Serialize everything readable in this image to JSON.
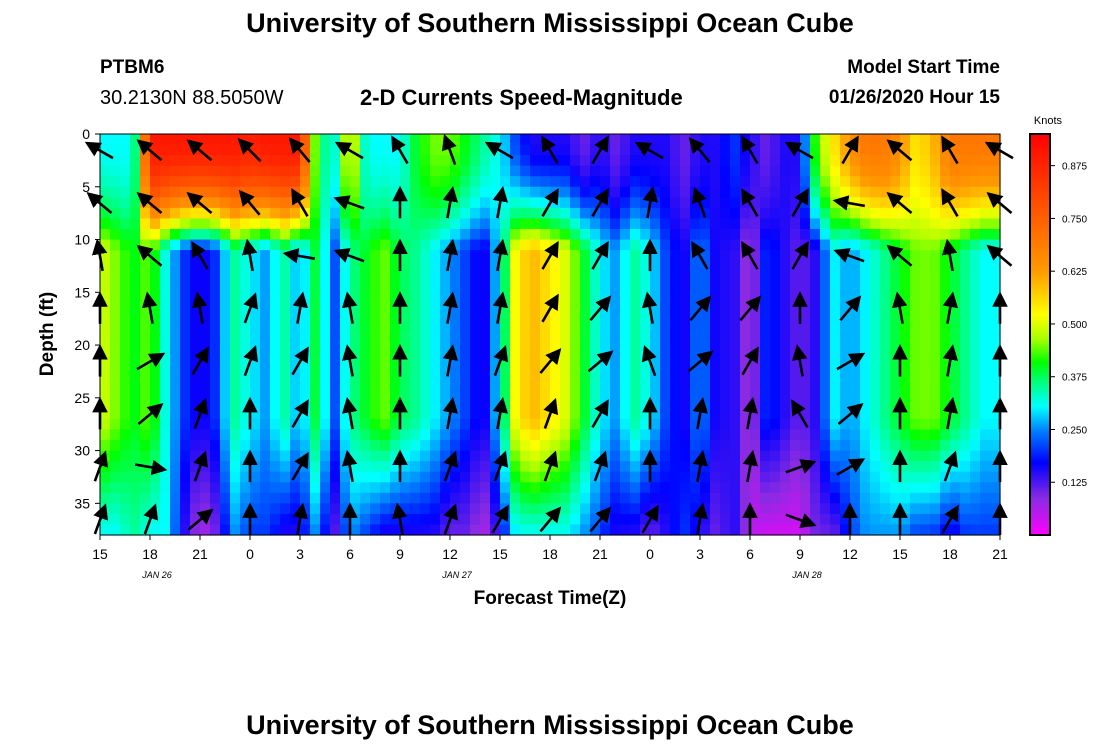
{
  "title_top": "University of Southern Mississippi Ocean Cube",
  "title_bottom": "University of Southern Mississippi Ocean Cube",
  "station": {
    "name": "PTBM6",
    "coords": "30.2130N 88.5050W"
  },
  "model": {
    "label": "Model Start Time",
    "value": "01/26/2020 Hour 15"
  },
  "chart_data": {
    "type": "heatmap",
    "title": "2-D Currents Speed-Magnitude",
    "xlabel": "Forecast Time(Z)",
    "ylabel": "Depth (ft)",
    "x_ticks": [
      "15",
      "18",
      "21",
      "0",
      "3",
      "6",
      "9",
      "12",
      "15",
      "18",
      "21",
      "0",
      "3",
      "6",
      "9",
      "12",
      "15",
      "18",
      "21"
    ],
    "date_labels": [
      {
        "label": "JAN 26",
        "tick_index": 1
      },
      {
        "label": "JAN 27",
        "tick_index": 7
      },
      {
        "label": "JAN 28",
        "tick_index": 14
      }
    ],
    "y_ticks": [
      0,
      5,
      10,
      15,
      20,
      25,
      30,
      35
    ],
    "ylim": [
      0,
      38
    ],
    "xlim_hours": [
      0,
      54
    ],
    "colorbar": {
      "unit": "Knots",
      "ticks": [
        "0.875",
        "0.750",
        "0.625",
        "0.500",
        "0.375",
        "0.250",
        "0.125"
      ],
      "range": [
        0,
        0.95
      ],
      "colors": [
        "#ff00ff",
        "#8a2be2",
        "#0000ff",
        "#0080ff",
        "#00ffff",
        "#00ff80",
        "#00ff00",
        "#80ff00",
        "#ffff00",
        "#ff9900",
        "#ff5a00",
        "#ff0000"
      ]
    },
    "speed_columns": {
      "note_hours": [
        0,
        1,
        2,
        3,
        4,
        5,
        6,
        7,
        8,
        9,
        10,
        11,
        12,
        13,
        14,
        15,
        16,
        17,
        18,
        19,
        20,
        21,
        22,
        23,
        24,
        25,
        26,
        27,
        28,
        29,
        30,
        31,
        32,
        33,
        34,
        35,
        36,
        37,
        38,
        39,
        40,
        41,
        42,
        43,
        44,
        45,
        46,
        47,
        48,
        49,
        50,
        51,
        52,
        53,
        54
      ],
      "surface": [
        0.3,
        0.3,
        0.3,
        0.9,
        0.9,
        0.9,
        0.9,
        0.9,
        0.9,
        0.88,
        0.9,
        0.9,
        0.9,
        0.4,
        0.3,
        0.55,
        0.3,
        0.3,
        0.3,
        0.4,
        0.45,
        0.45,
        0.4,
        0.35,
        0.3,
        0.2,
        0.15,
        0.15,
        0.15,
        0.1,
        0.15,
        0.1,
        0.15,
        0.15,
        0.15,
        0.1,
        0.15,
        0.15,
        0.2,
        0.15,
        0.1,
        0.15,
        0.15,
        0.45,
        0.55,
        0.65,
        0.7,
        0.7,
        0.65,
        0.55,
        0.6,
        0.7,
        0.7,
        0.7,
        0.7
      ],
      "middle": [
        0.5,
        0.45,
        0.4,
        0.45,
        0.3,
        0.2,
        0.15,
        0.2,
        0.35,
        0.3,
        0.25,
        0.35,
        0.25,
        0.4,
        0.2,
        0.35,
        0.4,
        0.45,
        0.38,
        0.35,
        0.3,
        0.25,
        0.2,
        0.15,
        0.3,
        0.55,
        0.6,
        0.55,
        0.5,
        0.4,
        0.3,
        0.25,
        0.35,
        0.3,
        0.2,
        0.15,
        0.25,
        0.15,
        0.15,
        0.05,
        0.2,
        0.15,
        0.1,
        0.15,
        0.3,
        0.25,
        0.3,
        0.35,
        0.4,
        0.45,
        0.45,
        0.4,
        0.35,
        0.3,
        0.3
      ],
      "bottom": [
        0.3,
        0.3,
        0.35,
        0.3,
        0.3,
        0.15,
        0.05,
        0.1,
        0.25,
        0.2,
        0.2,
        0.15,
        0.15,
        0.25,
        0.1,
        0.25,
        0.2,
        0.15,
        0.15,
        0.15,
        0.15,
        0.1,
        0.1,
        0.05,
        0.15,
        0.3,
        0.3,
        0.3,
        0.3,
        0.25,
        0.2,
        0.15,
        0.15,
        0.1,
        0.15,
        0.2,
        0.15,
        0.1,
        0.15,
        0.05,
        0.03,
        0.03,
        0.03,
        0.1,
        0.1,
        0.2,
        0.25,
        0.25,
        0.25,
        0.2,
        0.2,
        0.15,
        0.2,
        0.2,
        0.2
      ]
    },
    "vectors": {
      "hours": [
        0,
        3,
        6,
        9,
        12,
        15,
        18,
        21,
        24,
        27,
        30,
        33,
        36,
        39,
        42,
        45,
        48,
        51,
        54
      ],
      "depths": [
        1,
        6,
        11,
        16,
        21,
        26,
        31,
        36
      ],
      "angles_deg": [
        [
          -150,
          -140,
          -140,
          -135,
          -130,
          -150,
          -120,
          -110,
          -150,
          -120,
          -60,
          -150,
          -130,
          -120,
          -150,
          -60,
          -140,
          -120,
          -150
        ],
        [
          -140,
          -140,
          -140,
          -130,
          -120,
          -160,
          -90,
          -80,
          -80,
          -60,
          -60,
          -80,
          -110,
          -120,
          -60,
          -170,
          -140,
          -120,
          -140
        ],
        [
          -100,
          -140,
          -120,
          -100,
          -170,
          -160,
          -90,
          -80,
          -80,
          -60,
          -60,
          -90,
          -120,
          -120,
          -60,
          -160,
          -140,
          -100,
          -140
        ],
        [
          -90,
          -100,
          -100,
          -70,
          -80,
          -100,
          -90,
          -80,
          -80,
          -60,
          -50,
          -100,
          -50,
          -50,
          -90,
          -50,
          -100,
          -80,
          -90
        ],
        [
          -90,
          -30,
          -60,
          -70,
          -60,
          -100,
          -90,
          -80,
          -70,
          -50,
          -40,
          -110,
          -40,
          -60,
          -100,
          -30,
          -90,
          -80,
          -90
        ],
        [
          -90,
          -40,
          -70,
          -90,
          -60,
          -100,
          -90,
          -80,
          -80,
          -70,
          -60,
          -90,
          -80,
          -80,
          -120,
          -40,
          -90,
          -80,
          -90
        ],
        [
          -70,
          10,
          -70,
          -90,
          -60,
          -100,
          -90,
          -70,
          -70,
          -70,
          -70,
          -90,
          -80,
          -80,
          -20,
          -30,
          -90,
          -70,
          -90
        ],
        [
          -70,
          -70,
          -40,
          -90,
          -80,
          -90,
          -100,
          -70,
          -60,
          -50,
          -50,
          -60,
          -80,
          -90,
          20,
          -90,
          -90,
          -60,
          -90
        ]
      ]
    }
  }
}
